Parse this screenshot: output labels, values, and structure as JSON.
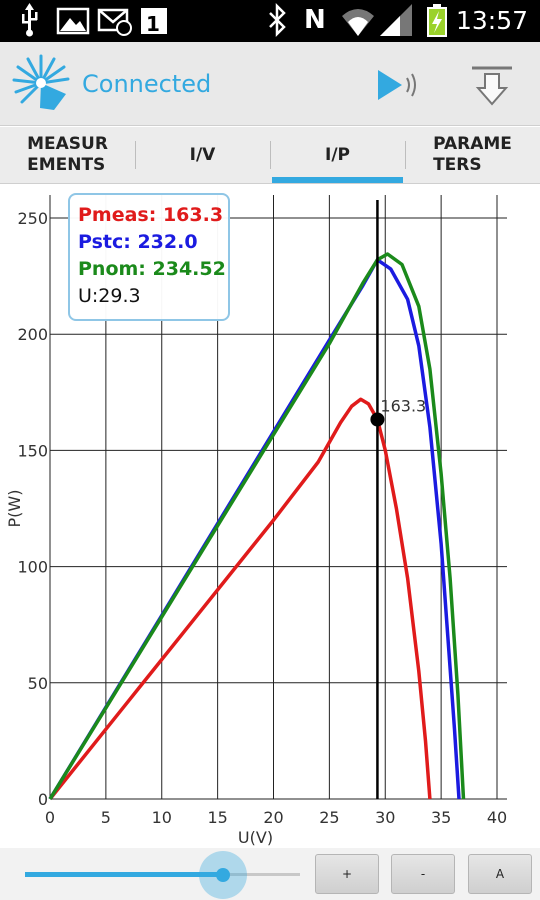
{
  "status_bar": {
    "time": "13:57",
    "icons": [
      "usb-icon",
      "image-icon",
      "missed-call-icon",
      "calendar-icon",
      "bluetooth-icon",
      "nfc-icon",
      "wifi-icon",
      "signal-icon",
      "battery-charging-icon"
    ],
    "calendar_day": "1",
    "nfc_letter": "N"
  },
  "app_bar": {
    "status": "Connected",
    "accent": "#33a9e0"
  },
  "tabs": [
    {
      "label": "MEASUR\nEMENTS",
      "active": false
    },
    {
      "label": "I/V",
      "active": false
    },
    {
      "label": "I/P",
      "active": true
    },
    {
      "label": "PARAME\nTERS",
      "active": false
    }
  ],
  "legend": {
    "pmeas": "Pmeas: 163.3",
    "pstc": "Pstc: 232.0",
    "pnom": "Pnom: 234.52",
    "u": "U:29.3"
  },
  "chart_data": {
    "type": "line",
    "xlabel": "U(V)",
    "ylabel": "P(W)",
    "xlim": [
      0,
      40
    ],
    "ylim": [
      0,
      250
    ],
    "xticks": [
      0,
      5,
      10,
      15,
      20,
      25,
      30,
      35,
      40
    ],
    "yticks": [
      0,
      50,
      100,
      150,
      200,
      250
    ],
    "grid": true,
    "cursor_x": 29.3,
    "marker": {
      "x": 29.3,
      "y": 163.3,
      "label": "163.3"
    },
    "series": [
      {
        "name": "Pmeas",
        "color": "#e01b1b",
        "x": [
          0,
          4,
          8,
          12,
          16,
          20,
          24,
          26,
          27,
          27.8,
          28.5,
          29.3,
          30,
          31,
          32,
          33,
          33.6,
          34.0
        ],
        "y": [
          0,
          24,
          48,
          72,
          96,
          120,
          145,
          162,
          169,
          172,
          170,
          163.3,
          150,
          125,
          95,
          55,
          25,
          0
        ]
      },
      {
        "name": "Pstc",
        "color": "#1b1be0",
        "x": [
          0,
          5,
          10,
          15,
          20,
          25,
          28,
          29.3,
          30.5,
          32,
          33,
          34,
          35,
          35.6,
          36.2,
          36.6
        ],
        "y": [
          0,
          39.5,
          79,
          118.5,
          158,
          197.5,
          221,
          232.0,
          228,
          215,
          195,
          160,
          110,
          70,
          30,
          0
        ]
      },
      {
        "name": "Pnom",
        "color": "#1b8a1b",
        "x": [
          0,
          5,
          10,
          15,
          20,
          25,
          28,
          29.3,
          30.2,
          31.5,
          33,
          34,
          35,
          35.8,
          36.5,
          37.0
        ],
        "y": [
          0,
          39.2,
          78.4,
          117.6,
          156.8,
          196,
          222,
          232.0,
          234.52,
          230,
          212,
          185,
          140,
          95,
          45,
          0
        ]
      }
    ]
  },
  "controls": {
    "slider_value": 0.72,
    "plus": "+",
    "minus": "-",
    "auto": "A"
  }
}
